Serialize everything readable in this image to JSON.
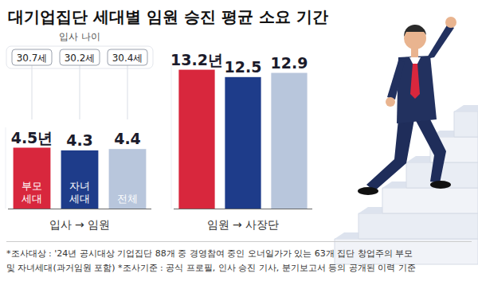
{
  "title": "대기업집단 세대별 임원 승진 평균 소요 기간",
  "footnote": [
    "*조사대상 : '24년 공시대상 기업집단 88개 중 경영참여 중인 오너일가가 있는 63개 집단 창업주의 부모",
    "및 자녀세대(과거임원 포함) *조사기준 : 공식 프로필, 인사 승진 기사, 분기보고서 등의 공개된 이력 기준"
  ],
  "chart_data": [
    {
      "type": "bar",
      "x_label": "입사 → 임원",
      "categories": [
        "부모 세대",
        "자녀 세대",
        "전체"
      ],
      "values": [
        4.5,
        4.3,
        4.4
      ],
      "value_labels": [
        "4.5년",
        "4.3",
        "4.4"
      ],
      "colors": [
        "#d8273d",
        "#1e3c8a",
        "#b8c6dc"
      ],
      "ylim": [
        0,
        6
      ],
      "tick_labels": false,
      "data_labels": true,
      "entry_age_title": "입사 나이",
      "entry_age": [
        30.7,
        30.2,
        30.4
      ],
      "entry_age_labels": [
        "30.7세",
        "30.2세",
        "30.4세"
      ]
    },
    {
      "type": "bar",
      "x_label": "임원 → 사장단",
      "categories": [
        null,
        null,
        null
      ],
      "values": [
        13.2,
        12.5,
        12.9
      ],
      "value_labels": [
        "13.2년",
        "12.5",
        "12.9"
      ],
      "colors": [
        "#d8273d",
        "#1e3c8a",
        "#b8c6dc"
      ],
      "ylim": [
        0,
        14
      ],
      "tick_labels": false,
      "data_labels": true
    }
  ]
}
